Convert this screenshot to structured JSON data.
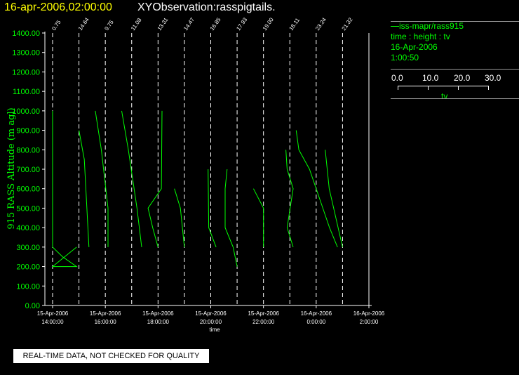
{
  "header": {
    "datetime": "16-apr-2006,02:00:00",
    "observation": "XYObservation:rasspigtails."
  },
  "legend": {
    "series_label": "iss-mapr/rass915",
    "axes_desc": "time : height : tv",
    "date": "16-Apr-2006",
    "time": "1:00:50",
    "scale_ticks": [
      "0.0",
      "10.0",
      "20.0",
      "30.0"
    ],
    "scale_unit": "tv"
  },
  "notice": "REAL-TIME DATA, NOT CHECKED FOR QUALITY",
  "colors": {
    "background": "#000000",
    "axis": "#ffffff",
    "data": "#00ff00",
    "title_date": "#ffff00"
  },
  "chart_data": {
    "type": "line",
    "title": "16-apr-2006,02:00:00  XYObservation:rasspigtails.",
    "ylabel": "915 RASS Altitude (m agl)",
    "xlabel": "time",
    "ylim": [
      0,
      1400
    ],
    "y_ticks": [
      "0.00",
      "100.00",
      "200.00",
      "300.00",
      "400.00",
      "500.00",
      "600.00",
      "700.00",
      "800.00",
      "900.00",
      "1000.00",
      "1100.00",
      "1200.00",
      "1300.00",
      "1400.00"
    ],
    "x_ticks": [
      {
        "date": "15-Apr-2006",
        "time": "14:00:00",
        "hour": 14
      },
      {
        "date": "15-Apr-2006",
        "time": "16:00:00",
        "hour": 16
      },
      {
        "date": "15-Apr-2006",
        "time": "18:00:00",
        "hour": 18
      },
      {
        "date": "15-Apr-2006",
        "time": "20:00:00",
        "hour": 20
      },
      {
        "date": "15-Apr-2006",
        "time": "22:00:00",
        "hour": 22
      },
      {
        "date": "16-Apr-2006",
        "time": "0:00:00",
        "hour": 24
      },
      {
        "date": "16-Apr-2006",
        "time": "2:00:00",
        "hour": 26
      }
    ],
    "xlim_hours": [
      14,
      26
    ],
    "tv_scale": [
      0,
      30
    ],
    "profiles": [
      {
        "label": "0.75",
        "hour": 14,
        "tv": [
          [
            0,
            200
          ],
          [
            0,
            1000
          ]
        ],
        "tv_pts": [
          [
            0,
            1000
          ],
          [
            0,
            300
          ],
          [
            1.5,
            250
          ],
          [
            3.6,
            200
          ],
          [
            0,
            200
          ],
          [
            3.6,
            300
          ]
        ]
      },
      {
        "label": "14.64",
        "hour": 15,
        "tv_pts": [
          [
            0,
            900
          ],
          [
            0.8,
            750
          ],
          [
            1.5,
            300
          ]
        ]
      },
      {
        "label": "9.75",
        "hour": 16,
        "tv_pts": [
          [
            -1.5,
            1000
          ],
          [
            -0.6,
            800
          ],
          [
            0.4,
            500
          ],
          [
            0.4,
            300
          ]
        ]
      },
      {
        "label": "11.08",
        "hour": 17,
        "tv_pts": [
          [
            -1.5,
            1000
          ],
          [
            -0.5,
            800
          ],
          [
            0.8,
            500
          ],
          [
            1.5,
            300
          ]
        ]
      },
      {
        "label": "13.31",
        "hour": 18,
        "tv_pts": [
          [
            0.6,
            1000
          ],
          [
            0.5,
            600
          ],
          [
            -1.5,
            500
          ],
          [
            -0.8,
            400
          ],
          [
            0,
            300
          ]
        ]
      },
      {
        "label": "14.47",
        "hour": 19,
        "tv_pts": [
          [
            -1.5,
            600
          ],
          [
            -0.6,
            500
          ],
          [
            0,
            300
          ]
        ]
      },
      {
        "label": "16.85",
        "hour": 20,
        "tv_pts": [
          [
            -0.4,
            700
          ],
          [
            -0.3,
            400
          ],
          [
            0.8,
            300
          ]
        ]
      },
      {
        "label": "17.93",
        "hour": 21,
        "tv_pts": [
          [
            -1.5,
            700
          ],
          [
            -1.8,
            600
          ],
          [
            -1.8,
            400
          ],
          [
            -0.6,
            300
          ],
          [
            0,
            200
          ]
        ]
      },
      {
        "label": "19.00",
        "hour": 22,
        "tv_pts": [
          [
            -1.5,
            600
          ],
          [
            0,
            500
          ],
          [
            0,
            300
          ]
        ]
      },
      {
        "label": "18.11",
        "hour": 23,
        "tv_pts": [
          [
            -0.6,
            800
          ],
          [
            -0.4,
            700
          ],
          [
            0.5,
            600
          ],
          [
            -0.4,
            400
          ],
          [
            0.5,
            300
          ]
        ]
      },
      {
        "label": "23.24",
        "hour": 24,
        "tv_pts": [
          [
            -3,
            900
          ],
          [
            -2.6,
            800
          ],
          [
            -1,
            700
          ],
          [
            1,
            500
          ],
          [
            2,
            400
          ],
          [
            3.2,
            300
          ]
        ]
      },
      {
        "label": "21.32",
        "hour": 25,
        "tv_pts": [
          [
            -2.6,
            800
          ],
          [
            -2,
            600
          ],
          [
            0,
            300
          ]
        ]
      }
    ],
    "annotations": [
      "0.75",
      "14.64",
      "9.75",
      "11.08",
      "13.31",
      "14.47",
      "16.85",
      "17.93",
      "19.00",
      "18.11",
      "23.24",
      "21.32"
    ]
  }
}
